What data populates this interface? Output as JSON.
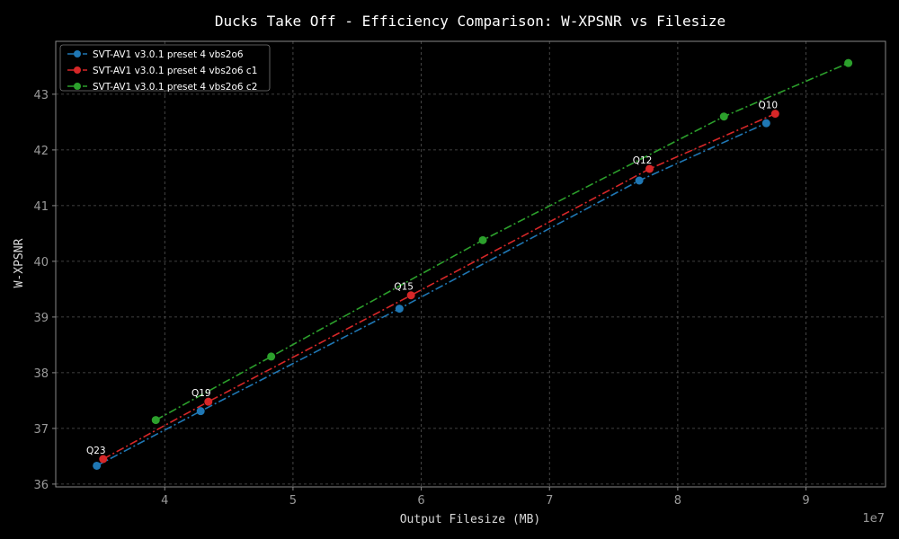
{
  "chart_data": {
    "type": "line",
    "title": "Ducks Take Off - Efficiency Comparison: W-XPSNR vs Filesize",
    "xlabel": "Output Filesize (MB)",
    "ylabel": "W-XPSNR",
    "x_offset_label": "1e7",
    "xlim": [
      3.15,
      9.62
    ],
    "ylim": [
      35.95,
      43.95
    ],
    "xticks": [
      4,
      5,
      6,
      7,
      8,
      9
    ],
    "xtick_labels": [
      "4",
      "5",
      "6",
      "7",
      "8",
      "9"
    ],
    "yticks": [
      36,
      37,
      38,
      39,
      40,
      41,
      42,
      43
    ],
    "ytick_labels": [
      "36",
      "37",
      "38",
      "39",
      "40",
      "41",
      "42",
      "43"
    ],
    "grid": true,
    "legend_position": "top-left",
    "series": [
      {
        "name": "SVT-AV1 v3.0.1 preset 4 vbs2o6",
        "color": "#1f77b4",
        "x": [
          3.47,
          4.28,
          5.83,
          7.7,
          8.69
        ],
        "y": [
          36.33,
          37.31,
          39.15,
          41.45,
          42.48
        ]
      },
      {
        "name": "SVT-AV1 v3.0.1 preset 4 vbs2o6 c1",
        "color": "#d62728",
        "x": [
          3.52,
          4.34,
          5.92,
          7.78,
          8.76
        ],
        "y": [
          36.45,
          37.48,
          39.39,
          41.66,
          42.65
        ]
      },
      {
        "name": "SVT-AV1 v3.0.1 preset 4 vbs2o6 c2",
        "color": "#2ca02c",
        "x": [
          3.93,
          4.83,
          6.48,
          8.36,
          9.33
        ],
        "y": [
          37.15,
          38.29,
          40.38,
          42.6,
          43.56
        ]
      }
    ],
    "annotations": [
      {
        "text": "Q23",
        "x": 3.52,
        "y": 36.45
      },
      {
        "text": "Q19",
        "x": 4.34,
        "y": 37.48
      },
      {
        "text": "Q15",
        "x": 5.92,
        "y": 39.39
      },
      {
        "text": "Q12",
        "x": 7.78,
        "y": 41.66
      },
      {
        "text": "Q10",
        "x": 8.76,
        "y": 42.65
      }
    ]
  }
}
